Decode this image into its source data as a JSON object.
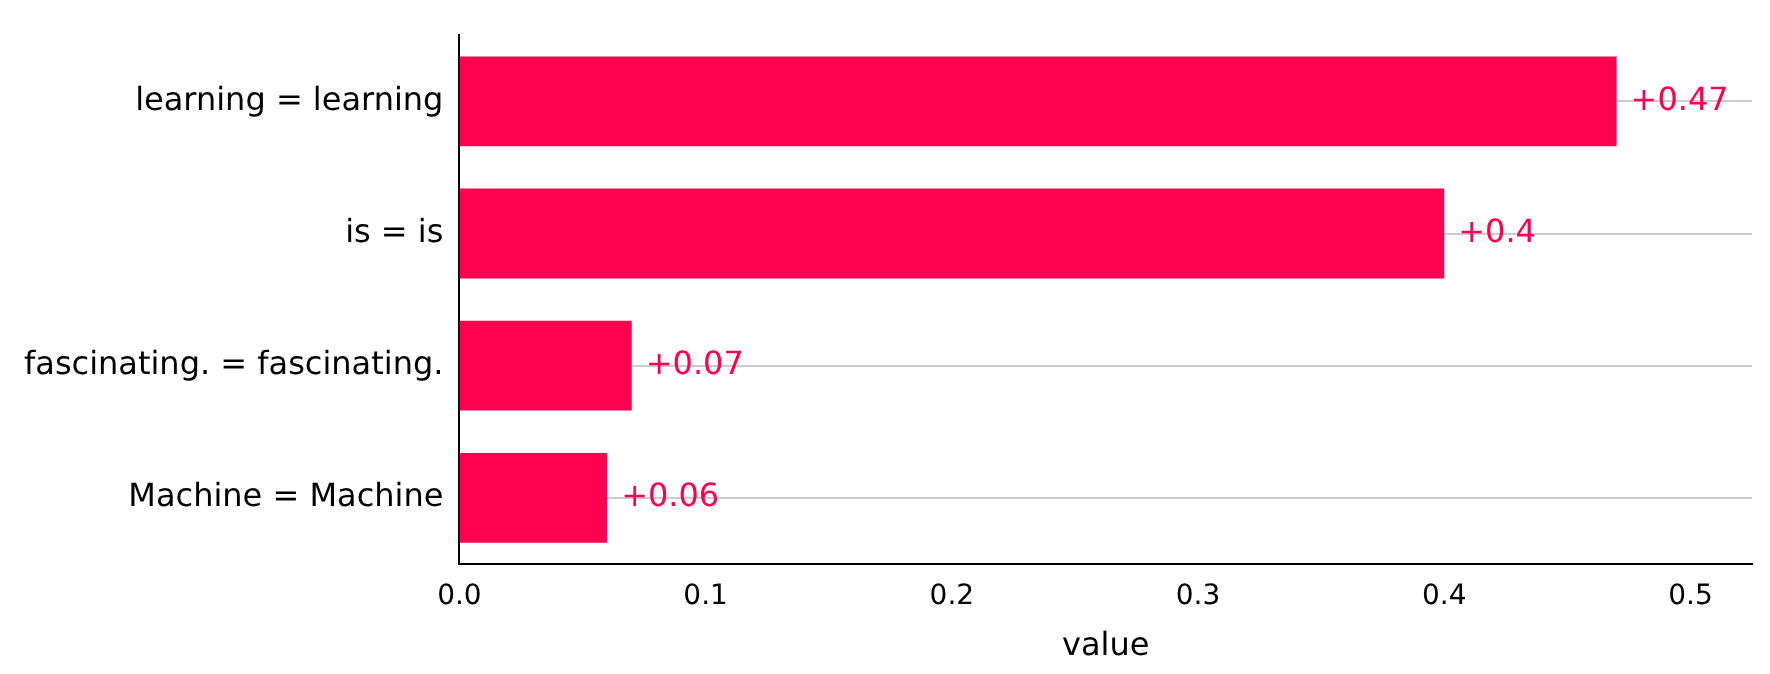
{
  "chart_data": {
    "type": "bar",
    "orientation": "horizontal",
    "categories": [
      "learning = learning",
      "is = is",
      "fascinating. = fascinating.",
      "Machine = Machine"
    ],
    "values": [
      0.47,
      0.4,
      0.07,
      0.06
    ],
    "color": "#ff0051",
    "value_labels": [
      "+0.47",
      "+0.4",
      "+0.07",
      "+0.06"
    ],
    "xlabel": "value",
    "xlim": [
      0,
      0.525
    ],
    "xticks": [
      {
        "value": 0,
        "label": "0.0"
      },
      0.1,
      0.2,
      0.3,
      0.4,
      0.5
    ],
    "grid": "y",
    "legend": false
  }
}
